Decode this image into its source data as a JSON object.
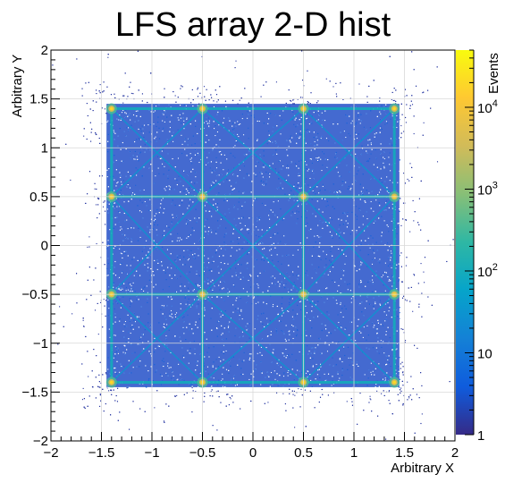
{
  "chart_data": {
    "type": "heatmap",
    "title": "LFS array 2-D hist",
    "xlabel": "Arbitrary X",
    "ylabel": "Arbitrary Y",
    "zlabel": "Events",
    "xlim": [
      -2,
      2
    ],
    "ylim": [
      -2,
      2
    ],
    "zlim": [
      1,
      50000
    ],
    "z_scale": "log",
    "grid": true,
    "x_ticks": [
      -2,
      -1.5,
      -1,
      -0.5,
      0,
      0.5,
      1,
      1.5,
      2
    ],
    "x_tick_labels": [
      "−2",
      "−1.5",
      "−1",
      "−0.5",
      "0",
      "0.5",
      "1",
      "1.5",
      "2"
    ],
    "y_ticks": [
      -2,
      -1.5,
      -1,
      -0.5,
      0,
      0.5,
      1,
      1.5,
      2
    ],
    "y_tick_labels": [
      "−2",
      "−1.5",
      "−1",
      "−0.5",
      "0",
      "0.5",
      "1",
      "1.5",
      "2"
    ],
    "z_ticks": [
      {
        "value": 1,
        "label": "1",
        "exp": ""
      },
      {
        "value": 10,
        "label": "10",
        "exp": ""
      },
      {
        "value": 100,
        "label": "10",
        "exp": "2"
      },
      {
        "value": 1000,
        "label": "10",
        "exp": "3"
      },
      {
        "value": 10000,
        "label": "10",
        "exp": "4"
      }
    ],
    "hotspot_x": [
      -1.4,
      -0.5,
      0.5,
      1.4
    ],
    "hotspot_y": [
      -1.4,
      -0.5,
      0.5,
      1.4
    ],
    "hotspot_peak_events": 20000,
    "grid_line_x_positions": [
      -1.4,
      -0.5,
      0.5,
      1.4
    ],
    "grid_line_y_positions": [
      -1.4,
      -0.5,
      0.5,
      1.4
    ],
    "colormap": [
      "#352a87",
      "#0f5cdd",
      "#1481d6",
      "#06a4ca",
      "#2eb7a4",
      "#87bf77",
      "#d1bb59",
      "#fec832",
      "#f9fb0e"
    ]
  }
}
